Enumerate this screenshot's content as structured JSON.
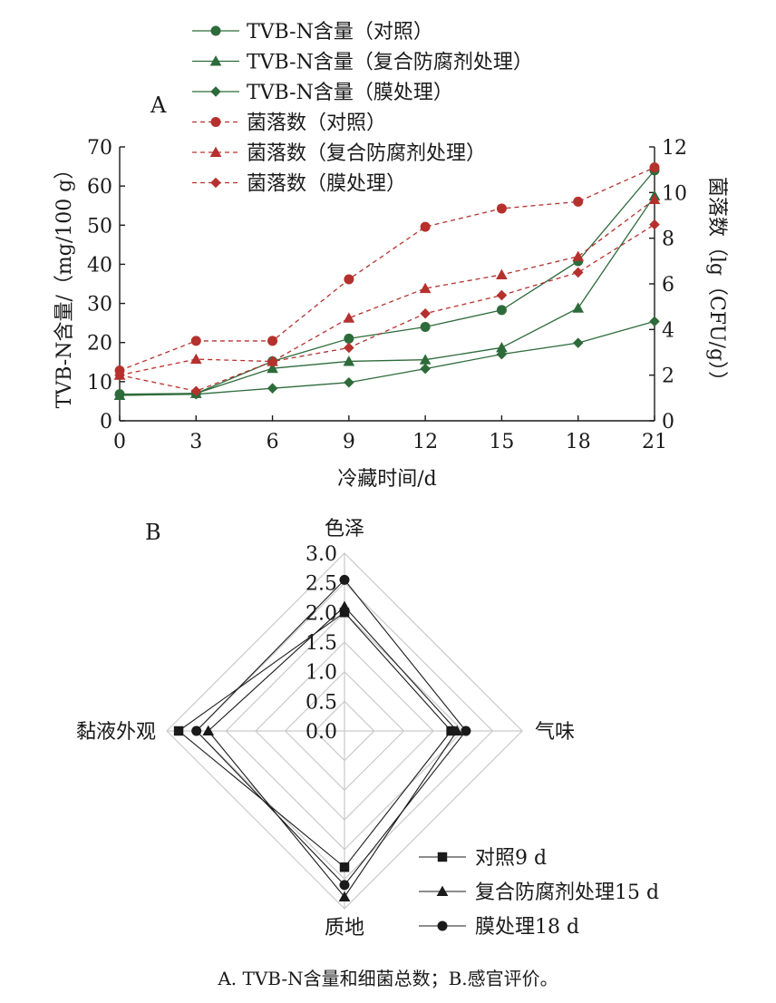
{
  "chart_data": [
    {
      "type": "line",
      "panel_label": "A",
      "xlabel": "冷藏时间/d",
      "ylabel": "TVB-N含量/（mg/100 g）",
      "y2label": "菌落数（lg（CFU/g））",
      "x": [
        0,
        3,
        6,
        9,
        12,
        15,
        18,
        21
      ],
      "xticks": [
        "0",
        "3",
        "6",
        "9",
        "12",
        "15",
        "18",
        "21"
      ],
      "xlim": [
        0,
        21
      ],
      "ylim": [
        0,
        70
      ],
      "yticks": [
        "0",
        "10",
        "20",
        "30",
        "40",
        "50",
        "60",
        "70"
      ],
      "y2lim": [
        0,
        12
      ],
      "y2ticks": [
        "0",
        "2",
        "4",
        "6",
        "8",
        "10",
        "12"
      ],
      "legend_position": "top-center",
      "series": [
        {
          "name": "TVB-N含量（对照）",
          "axis": "left",
          "marker": "circle",
          "dash": "solid",
          "color": "#2e6b3a",
          "values": [
            6.8,
            7.0,
            15.2,
            21.0,
            24.0,
            28.3,
            40.8,
            64.0
          ]
        },
        {
          "name": "TVB-N含量（复合防腐剂处理）",
          "axis": "left",
          "marker": "triangle",
          "dash": "solid",
          "color": "#2e6b3a",
          "values": [
            6.5,
            7.0,
            13.4,
            15.2,
            15.6,
            18.7,
            28.8,
            57.5
          ]
        },
        {
          "name": "TVB-N含量（膜处理）",
          "axis": "left",
          "marker": "diamond",
          "dash": "solid",
          "color": "#2e6b3a",
          "values": [
            6.5,
            6.8,
            8.3,
            9.8,
            13.3,
            17.0,
            19.9,
            25.4
          ]
        },
        {
          "name": "菌落数（对照）",
          "axis": "right",
          "marker": "circle",
          "dash": "dashed",
          "color": "#b5312e",
          "values": [
            2.2,
            3.5,
            3.5,
            6.2,
            8.5,
            9.3,
            9.6,
            11.1
          ]
        },
        {
          "name": "菌落数（复合防腐剂处理）",
          "axis": "right",
          "marker": "triangle",
          "dash": "dashed",
          "color": "#b5312e",
          "values": [
            2.0,
            2.7,
            2.6,
            4.5,
            5.8,
            6.4,
            7.2,
            9.7
          ]
        },
        {
          "name": "菌落数（膜处理）",
          "axis": "right",
          "marker": "diamond",
          "dash": "dashed",
          "color": "#b5312e",
          "values": [
            2.0,
            1.3,
            2.6,
            3.2,
            4.7,
            5.5,
            6.5,
            8.6
          ]
        }
      ]
    },
    {
      "type": "radar",
      "panel_label": "B",
      "axes": [
        "色泽",
        "气味",
        "质地",
        "黏液外观"
      ],
      "range": [
        0,
        3.0
      ],
      "ticks": [
        "0.0",
        "0.5",
        "1.0",
        "1.5",
        "2.0",
        "2.5",
        "3.0"
      ],
      "legend_position": "bottom-right",
      "series": [
        {
          "name": "对照9 d",
          "marker": "square",
          "color": "#1a1a1a",
          "values": [
            2.0,
            1.8,
            2.3,
            2.8
          ]
        },
        {
          "name": "复合防腐剂处理15 d",
          "marker": "triangle",
          "color": "#1a1a1a",
          "values": [
            2.1,
            1.9,
            2.8,
            2.3
          ]
        },
        {
          "name": "膜处理18 d",
          "marker": "circle",
          "color": "#1a1a1a",
          "values": [
            2.55,
            2.05,
            2.6,
            2.5
          ]
        }
      ]
    }
  ],
  "caption": "A. TVB-N含量和细菌总数；B.感官评价。"
}
